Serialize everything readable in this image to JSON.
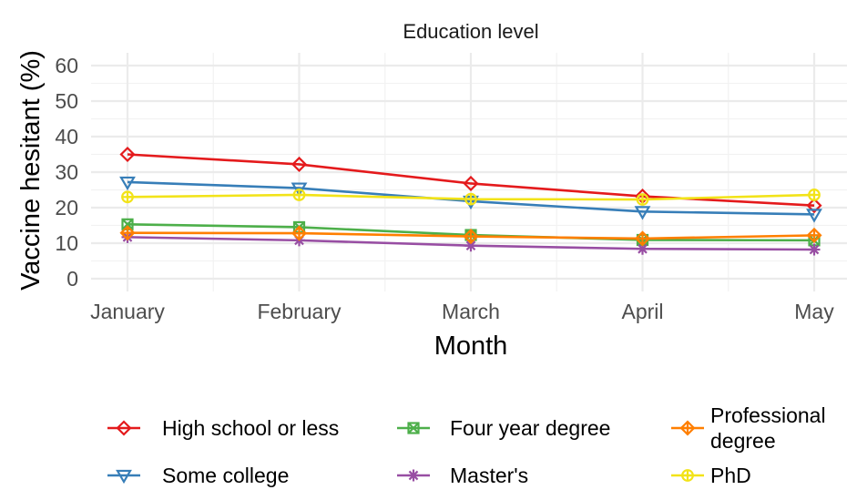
{
  "chart_data": {
    "type": "line",
    "facet_title": "Education level",
    "xlabel": "Month",
    "ylabel": "Vaccine hesitant (%)",
    "categories": [
      "January",
      "February",
      "March",
      "April",
      "May"
    ],
    "ylim": [
      0,
      60
    ],
    "yticks": [
      0,
      10,
      20,
      30,
      40,
      50,
      60
    ],
    "grid": true,
    "legend_position": "bottom",
    "series": [
      {
        "name": "High school or less",
        "color": "#e41a1c",
        "marker": "diamond",
        "values": [
          35.0,
          32.2,
          26.8,
          23.2,
          20.6
        ]
      },
      {
        "name": "Some college",
        "color": "#377eb8",
        "marker": "triangle-down",
        "values": [
          27.2,
          25.5,
          21.8,
          18.9,
          18.1
        ]
      },
      {
        "name": "Four year degree",
        "color": "#4daf4a",
        "marker": "square-cross",
        "values": [
          15.3,
          14.5,
          12.3,
          10.9,
          10.8
        ]
      },
      {
        "name": "Master's",
        "color": "#984ea3",
        "marker": "asterisk",
        "values": [
          11.7,
          10.8,
          9.3,
          8.4,
          8.2
        ]
      },
      {
        "name": "Professional degree",
        "color": "#ff7f00",
        "marker": "diamond-plus",
        "values": [
          12.9,
          12.8,
          11.9,
          11.3,
          12.2
        ]
      },
      {
        "name": "PhD",
        "color": "#f2e318",
        "marker": "circle-plus",
        "values": [
          23.0,
          23.6,
          22.4,
          22.3,
          23.6
        ]
      }
    ],
    "legend": {
      "rows": [
        [
          {
            "series": 0,
            "lines": [
              "High school or less"
            ]
          },
          {
            "series": 2,
            "lines": [
              "Four year degree"
            ]
          },
          {
            "series": 4,
            "lines": [
              "Professional",
              " degree"
            ]
          }
        ],
        [
          {
            "series": 1,
            "lines": [
              "Some college"
            ]
          },
          {
            "series": 3,
            "lines": [
              "Master's"
            ]
          },
          {
            "series": 5,
            "lines": [
              "PhD"
            ]
          }
        ]
      ]
    }
  }
}
